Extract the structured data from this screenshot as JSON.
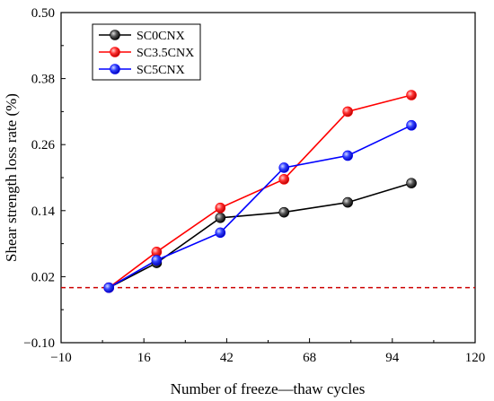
{
  "chart_data": {
    "type": "line",
    "title": "",
    "xlabel": "Number of freeze—thaw cycles",
    "ylabel": "Shear strength loss rate (%)",
    "xlim": [
      -10,
      120
    ],
    "ylim": [
      -0.1,
      0.5
    ],
    "xticks": [
      -10,
      16,
      42,
      68,
      94,
      120
    ],
    "yticks": [
      -0.1,
      0.02,
      0.14,
      0.26,
      0.38,
      0.5
    ],
    "xtick_labels": [
      "−10",
      "16",
      "42",
      "68",
      "94",
      "120"
    ],
    "ytick_labels": [
      "−0.10",
      "0.02",
      "0.14",
      "0.26",
      "0.38",
      "0.50"
    ],
    "grid": false,
    "legend_position": "top-left",
    "reference_line": {
      "y": 0.0,
      "color": "#cc0000",
      "style": "dashed"
    },
    "series": [
      {
        "name": "SC0CNX",
        "color": "#000000",
        "x": [
          5,
          20,
          40,
          60,
          80,
          100
        ],
        "y": [
          0.0,
          0.045,
          0.127,
          0.137,
          0.155,
          0.19
        ]
      },
      {
        "name": "SC3.5CNX",
        "color": "#ff0000",
        "x": [
          5,
          20,
          40,
          60,
          80,
          100
        ],
        "y": [
          0.0,
          0.065,
          0.145,
          0.197,
          0.32,
          0.35
        ]
      },
      {
        "name": "SC5CNX",
        "color": "#0000ff",
        "x": [
          5,
          20,
          40,
          60,
          80,
          100
        ],
        "y": [
          0.0,
          0.05,
          0.1,
          0.218,
          0.24,
          0.295
        ]
      }
    ]
  }
}
